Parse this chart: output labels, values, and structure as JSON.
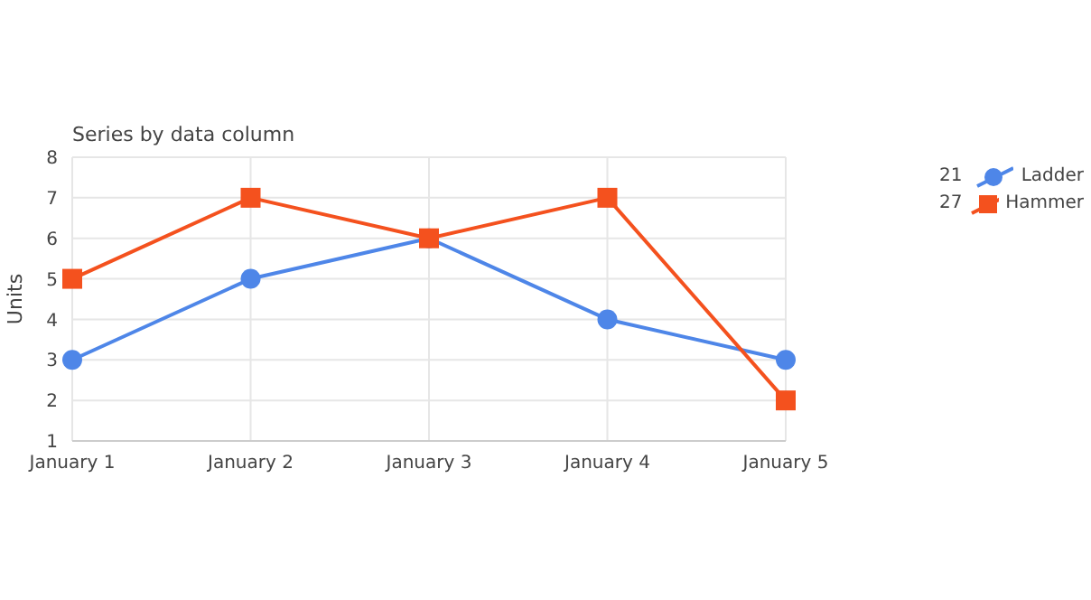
{
  "chart_data": {
    "type": "line",
    "title": "Series by data column",
    "ylabel": "Units",
    "categories": [
      "January 1",
      "January 2",
      "January 3",
      "January 4",
      "January 5"
    ],
    "series": [
      {
        "name": "Ladder",
        "color": "#4e86e8",
        "values": [
          3,
          5,
          6,
          4,
          3
        ],
        "marker": "circle"
      },
      {
        "name": "Hammer",
        "color": "#f4511e",
        "values": [
          5,
          7,
          6,
          7,
          2
        ],
        "marker": "square"
      }
    ],
    "totals": [
      "21",
      "27"
    ],
    "ylim": [
      1,
      8
    ],
    "yticks": [
      1,
      2,
      3,
      4,
      5,
      6,
      7,
      8
    ],
    "grid": true,
    "legend": "top right",
    "line_style": "solid"
  }
}
